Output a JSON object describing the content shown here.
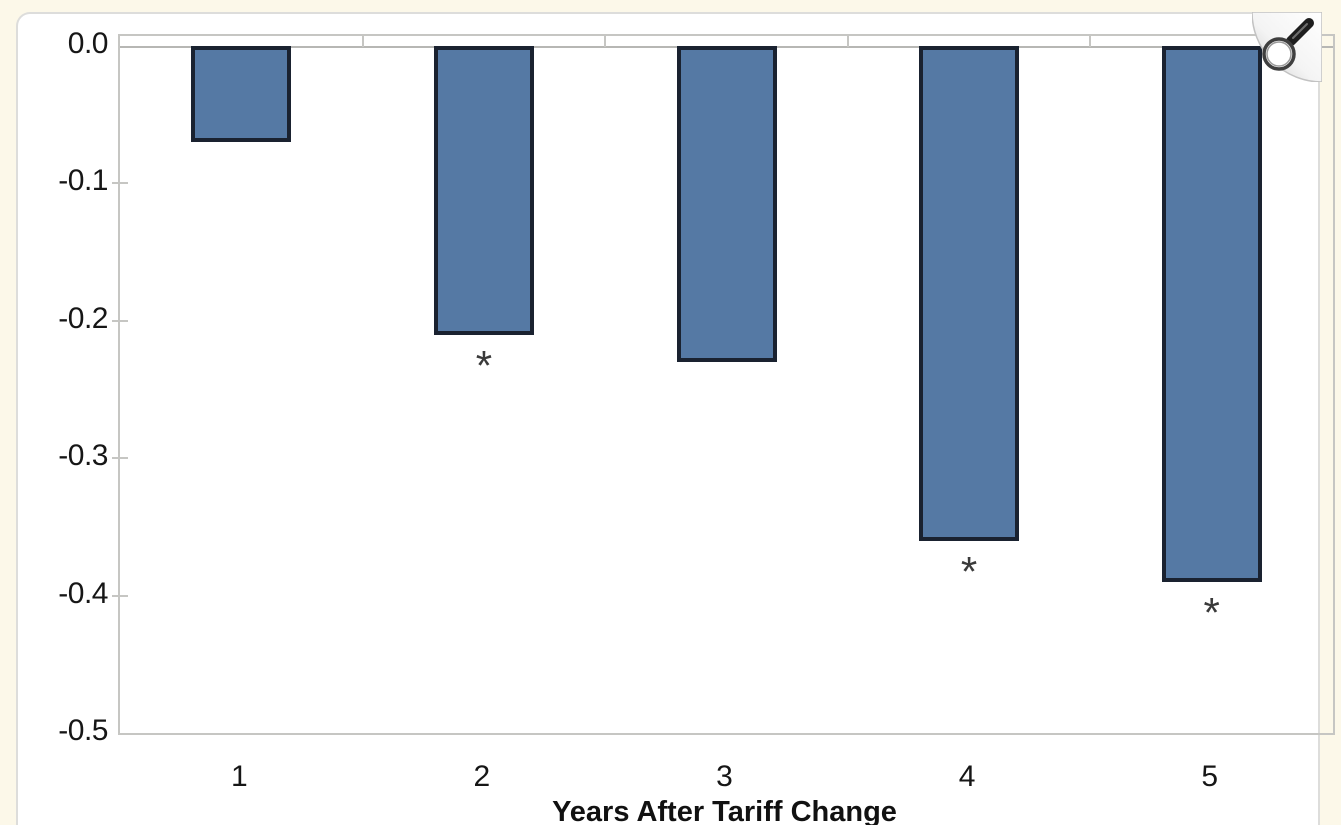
{
  "page": {
    "background_color": "#fcf8e9",
    "card_background": "#ffffff",
    "card_border_color": "#dddddb"
  },
  "zoom_overlay": {
    "icon": "magnifier-icon"
  },
  "chart_data": {
    "type": "bar",
    "title": "",
    "xlabel": "Years After Tariff Change",
    "ylabel": "",
    "categories": [
      "1",
      "2",
      "3",
      "4",
      "5"
    ],
    "values": [
      -0.07,
      -0.21,
      -0.23,
      -0.36,
      -0.39
    ],
    "significant": [
      false,
      true,
      false,
      true,
      true
    ],
    "significance_marker": "*",
    "ylim": [
      -0.5,
      0.0
    ],
    "ytick_labels": [
      "0.0",
      "-0.1",
      "-0.2",
      "-0.3",
      "-0.4",
      "-0.5"
    ],
    "ytick_values": [
      0.0,
      -0.1,
      -0.2,
      -0.3,
      -0.4,
      -0.5
    ],
    "grid": false,
    "legend": "none",
    "bar_fill_color": "#5579a4",
    "bar_border_color": "#1a2230",
    "axis_line_color": "#c6c6c3",
    "text_color": "#161616"
  }
}
